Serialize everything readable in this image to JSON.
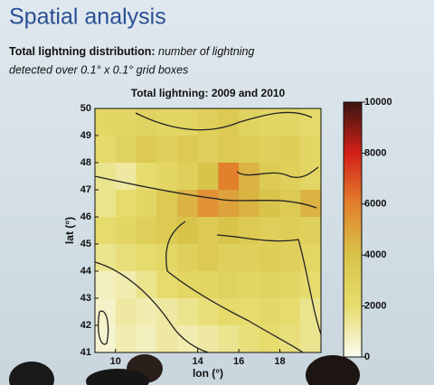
{
  "slide_title": "Spatial analysis",
  "subtitle": {
    "lead": "Total lightning distribution:",
    "lines": [
      "number of lightning",
      "detected over 0.1° x 0.1° grid boxes"
    ]
  },
  "chart_data": {
    "type": "heatmap",
    "title": "Total lightning: 2009 and 2010",
    "x_label": "lon (°)",
    "y_label": "lat (°)",
    "xlim": [
      9,
      20
    ],
    "xticks": [
      10,
      14,
      16,
      18
    ],
    "ylim": [
      41,
      50
    ],
    "yticks": [
      41,
      42,
      43,
      44,
      45,
      46,
      47,
      48,
      49,
      50
    ],
    "values": [
      [
        2500,
        2500,
        2800,
        2500,
        2600,
        3000,
        3500,
        2800,
        2500,
        2600,
        2200
      ],
      [
        2200,
        2800,
        3500,
        3000,
        3500,
        3000,
        3500,
        3200,
        3000,
        3200,
        2500
      ],
      [
        1500,
        1200,
        2000,
        2500,
        3000,
        4000,
        6000,
        4500,
        3500,
        3000,
        2500
      ],
      [
        1500,
        2000,
        2500,
        3500,
        4500,
        5500,
        5000,
        4500,
        4000,
        3500,
        4500
      ],
      [
        2000,
        2500,
        3000,
        3500,
        4000,
        3500,
        4000,
        3500,
        3000,
        3200,
        3000
      ],
      [
        1500,
        1800,
        2000,
        2500,
        3000,
        3500,
        3000,
        3000,
        3200,
        3000,
        2500
      ],
      [
        800,
        1000,
        1500,
        2000,
        2500,
        2500,
        2800,
        2500,
        2800,
        2500,
        2000
      ],
      [
        600,
        1200,
        1000,
        1200,
        1500,
        1800,
        2200,
        2000,
        2300,
        2000,
        1500
      ],
      [
        500,
        1000,
        800,
        1200,
        1000,
        1200,
        1500,
        1800,
        2000,
        1800,
        1500
      ]
    ],
    "zlim": [
      0,
      10000
    ],
    "zticks": [
      0,
      2000,
      4000,
      6000,
      8000,
      10000
    ],
    "colorscale": [
      "#fbfbf0",
      "#e6dc6e",
      "#d8c44a",
      "#e2802c",
      "#d42018",
      "#3a1410"
    ]
  }
}
